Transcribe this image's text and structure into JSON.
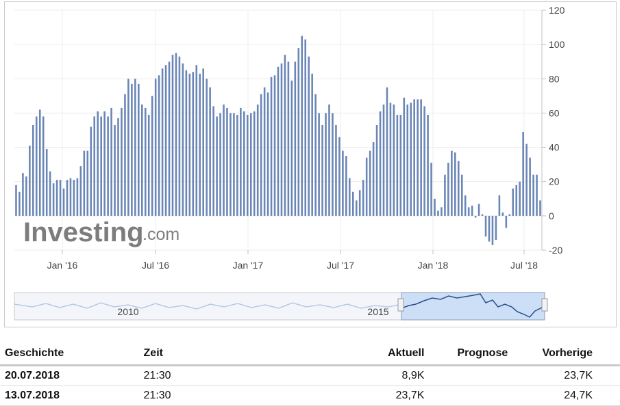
{
  "watermark": {
    "brand": "Investing",
    "suffix": ".com"
  },
  "chart_data": {
    "type": "bar",
    "ylim": [
      -20,
      120
    ],
    "yticks": [
      120,
      100,
      80,
      60,
      40,
      20,
      0,
      -20
    ],
    "xticks": [
      "Jan '16",
      "Jul '16",
      "Jan '17",
      "Jul '17",
      "Jan '18",
      "Jul '18"
    ],
    "grid": true,
    "color": "#6a86b6",
    "values": [
      18,
      14,
      25,
      23,
      41,
      53,
      58,
      62,
      58,
      39,
      26,
      19,
      21,
      21,
      16,
      21,
      22,
      21,
      22,
      29,
      38,
      38,
      52,
      58,
      61,
      58,
      61,
      58,
      63,
      53,
      57,
      63,
      71,
      80,
      77,
      80,
      77,
      65,
      63,
      59,
      70,
      80,
      82,
      86,
      88,
      90,
      94,
      95,
      93,
      89,
      85,
      83,
      84,
      88,
      83,
      86,
      80,
      75,
      64,
      58,
      60,
      65,
      63,
      60,
      60,
      59,
      63,
      61,
      59,
      60,
      61,
      65,
      71,
      75,
      72,
      81,
      82,
      87,
      89,
      94,
      90,
      79,
      90,
      98,
      105,
      103,
      93,
      83,
      71,
      60,
      53,
      60,
      65,
      60,
      53,
      46,
      38,
      35,
      22,
      14,
      9,
      15,
      21,
      34,
      38,
      43,
      53,
      61,
      65,
      75,
      66,
      65,
      59,
      59,
      69,
      65,
      66,
      68,
      68,
      68,
      64,
      59,
      31,
      10,
      3,
      5,
      24,
      31,
      38,
      37,
      32,
      24,
      12,
      5,
      6,
      -1,
      7,
      1,
      -12,
      -15,
      -17,
      -14,
      12,
      2,
      -7,
      1,
      16,
      18,
      20,
      49,
      42,
      34,
      24,
      24,
      9
    ]
  },
  "navigator": {
    "labels": [
      "2010",
      "2015"
    ]
  },
  "table": {
    "headers": [
      "Geschichte",
      "Zeit",
      "Aktuell",
      "Prognose",
      "Vorherige"
    ],
    "rows": [
      {
        "date": "20.07.2018",
        "time": "21:30",
        "actual": "8,9K",
        "forecast": "",
        "previous": "23,7K"
      },
      {
        "date": "13.07.2018",
        "time": "21:30",
        "actual": "23,7K",
        "forecast": "",
        "previous": "24,7K"
      }
    ]
  }
}
